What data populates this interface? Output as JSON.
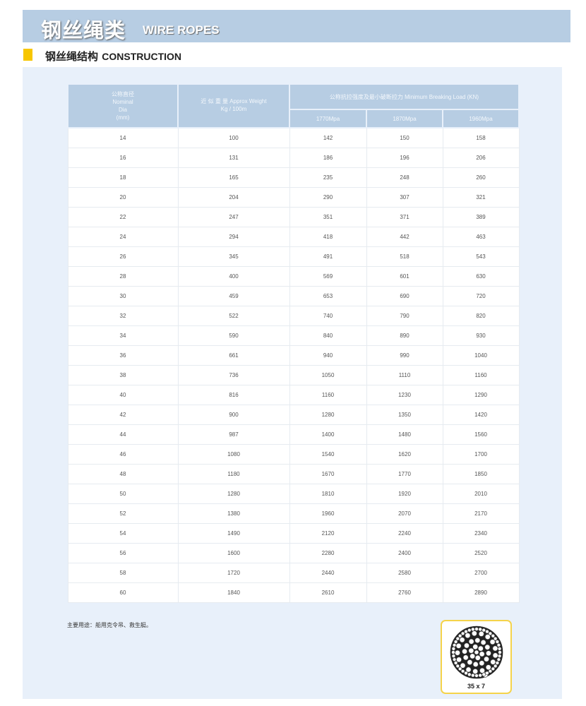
{
  "banner": {
    "title_cn": "钢丝绳类",
    "title_en": "WIRE ROPES"
  },
  "section": {
    "title_cn": "钢丝绳结构",
    "title_en": "CONSTRUCTION"
  },
  "colors": {
    "banner": "#b7cde3",
    "panel": "#e8f0fa",
    "accent": "#f7c600"
  },
  "table": {
    "headers": {
      "dia": [
        "公称直径",
        "Nominal",
        "Dia",
        "(mm)"
      ],
      "weight": [
        "近 似 重 量 Approx Weight",
        "Kg / 100m"
      ],
      "load": "公称抗拉强度及最小破断拉力 Minimum Breaking Load (KN)",
      "grades": [
        "1770Mpa",
        "1870Mpa",
        "1960Mpa"
      ]
    },
    "rows": [
      [
        "14",
        "100",
        "142",
        "150",
        "158"
      ],
      [
        "16",
        "131",
        "186",
        "196",
        "206"
      ],
      [
        "18",
        "165",
        "235",
        "248",
        "260"
      ],
      [
        "20",
        "204",
        "290",
        "307",
        "321"
      ],
      [
        "22",
        "247",
        "351",
        "371",
        "389"
      ],
      [
        "24",
        "294",
        "418",
        "442",
        "463"
      ],
      [
        "26",
        "345",
        "491",
        "518",
        "543"
      ],
      [
        "28",
        "400",
        "569",
        "601",
        "630"
      ],
      [
        "30",
        "459",
        "653",
        "690",
        "720"
      ],
      [
        "32",
        "522",
        "740",
        "790",
        "820"
      ],
      [
        "34",
        "590",
        "840",
        "890",
        "930"
      ],
      [
        "36",
        "661",
        "940",
        "990",
        "1040"
      ],
      [
        "38",
        "736",
        "1050",
        "1110",
        "1160"
      ],
      [
        "40",
        "816",
        "1160",
        "1230",
        "1290"
      ],
      [
        "42",
        "900",
        "1280",
        "1350",
        "1420"
      ],
      [
        "44",
        "987",
        "1400",
        "1480",
        "1560"
      ],
      [
        "46",
        "1080",
        "1540",
        "1620",
        "1700"
      ],
      [
        "48",
        "1180",
        "1670",
        "1770",
        "1850"
      ],
      [
        "50",
        "1280",
        "1810",
        "1920",
        "2010"
      ],
      [
        "52",
        "1380",
        "1960",
        "2070",
        "2170"
      ],
      [
        "54",
        "1490",
        "2120",
        "2240",
        "2340"
      ],
      [
        "56",
        "1600",
        "2280",
        "2400",
        "2520"
      ],
      [
        "58",
        "1720",
        "2440",
        "2580",
        "2700"
      ],
      [
        "60",
        "1840",
        "2610",
        "2760",
        "2890"
      ]
    ]
  },
  "note": "主要用途：船用克令吊、救生艇。",
  "figure": {
    "caption": "35 x 7",
    "icon": "wire-rope-cross-section"
  }
}
